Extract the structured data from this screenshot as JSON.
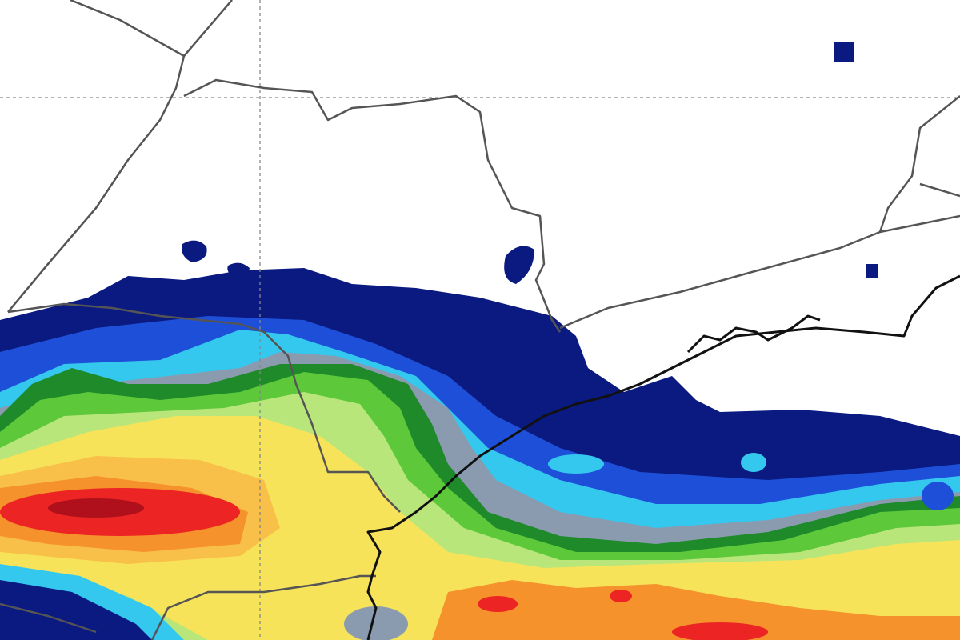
{
  "map": {
    "type": "precipitation",
    "colors": {
      "background": "#ffffff",
      "navy": "#0a1a80",
      "blue": "#1e4fd8",
      "light_blue": "#35c8ee",
      "gray": "#8a9bb0",
      "dark_green": "#1e8a2a",
      "green": "#5cc83a",
      "light_green": "#b8e67a",
      "yellow": "#f7e35a",
      "light_orange": "#f8c048",
      "orange": "#f5922c",
      "red": "#ec2424",
      "dark_red": "#b0101c",
      "borders": "#555555",
      "coastline": "#111111"
    }
  }
}
